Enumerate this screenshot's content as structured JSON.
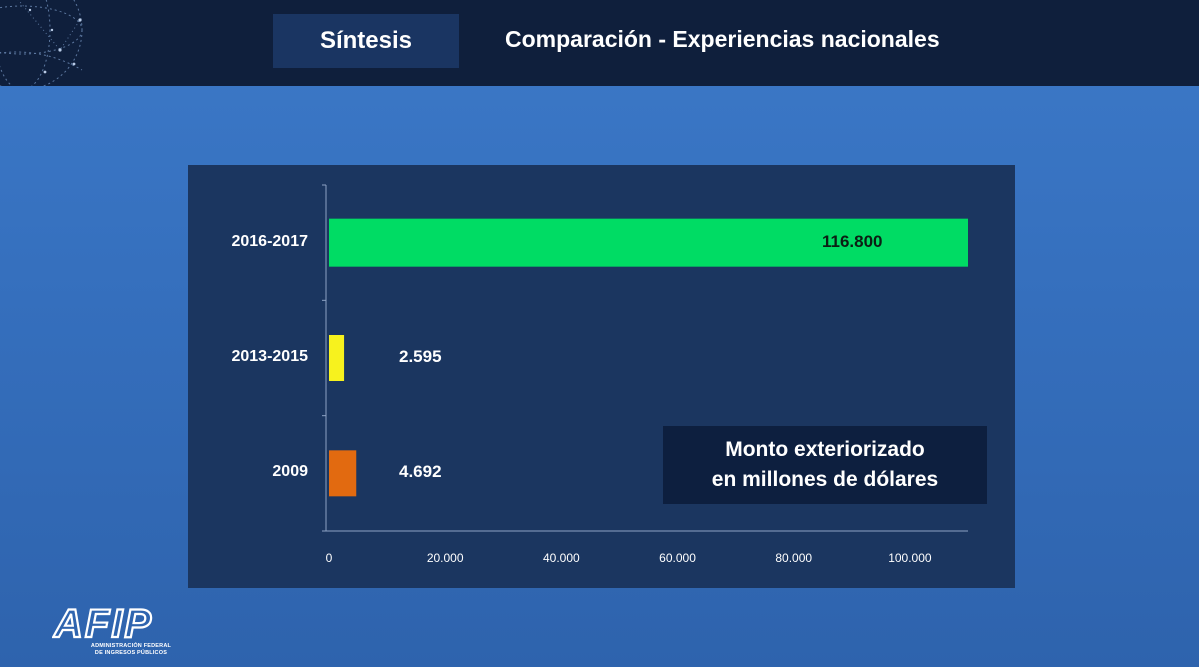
{
  "header": {
    "section_tab": "Síntesis",
    "title": "Comparación - Experiencias nacionales"
  },
  "note": {
    "line1": "Monto exteriorizado",
    "line2": "en  millones de dólares"
  },
  "logo": {
    "mark_text": "AFIP",
    "line1": "ADMINISTRACIÓN FEDERAL",
    "line2": "DE INGRESOS PÚBLICOS"
  },
  "colors": {
    "header_bg": "#0f1f3c",
    "panel_bg": "#1b3660",
    "bar_2016_2017": "#00dc64",
    "bar_2013_2015": "#f7f21e",
    "bar_2009": "#e26a10"
  },
  "chart_data": {
    "type": "bar",
    "orientation": "horizontal",
    "categories": [
      "2016-2017",
      "2013-2015",
      "2009"
    ],
    "values": [
      116800,
      2595,
      4692
    ],
    "value_labels": [
      "116.800",
      "2.595",
      "4.692"
    ],
    "colors": [
      "#00dc64",
      "#f7f21e",
      "#e26a10"
    ],
    "label_colors": [
      "#0b1f14",
      "#ffffff",
      "#ffffff"
    ],
    "xlim": [
      0,
      110000
    ],
    "xticks": [
      0,
      20000,
      40000,
      60000,
      80000,
      100000
    ],
    "xtick_labels": [
      "0",
      "20.000",
      "40.000",
      "60.000",
      "80.000",
      "100.000"
    ],
    "bar_clipped_at_axis_max": true,
    "grid": false,
    "legend": "none"
  }
}
